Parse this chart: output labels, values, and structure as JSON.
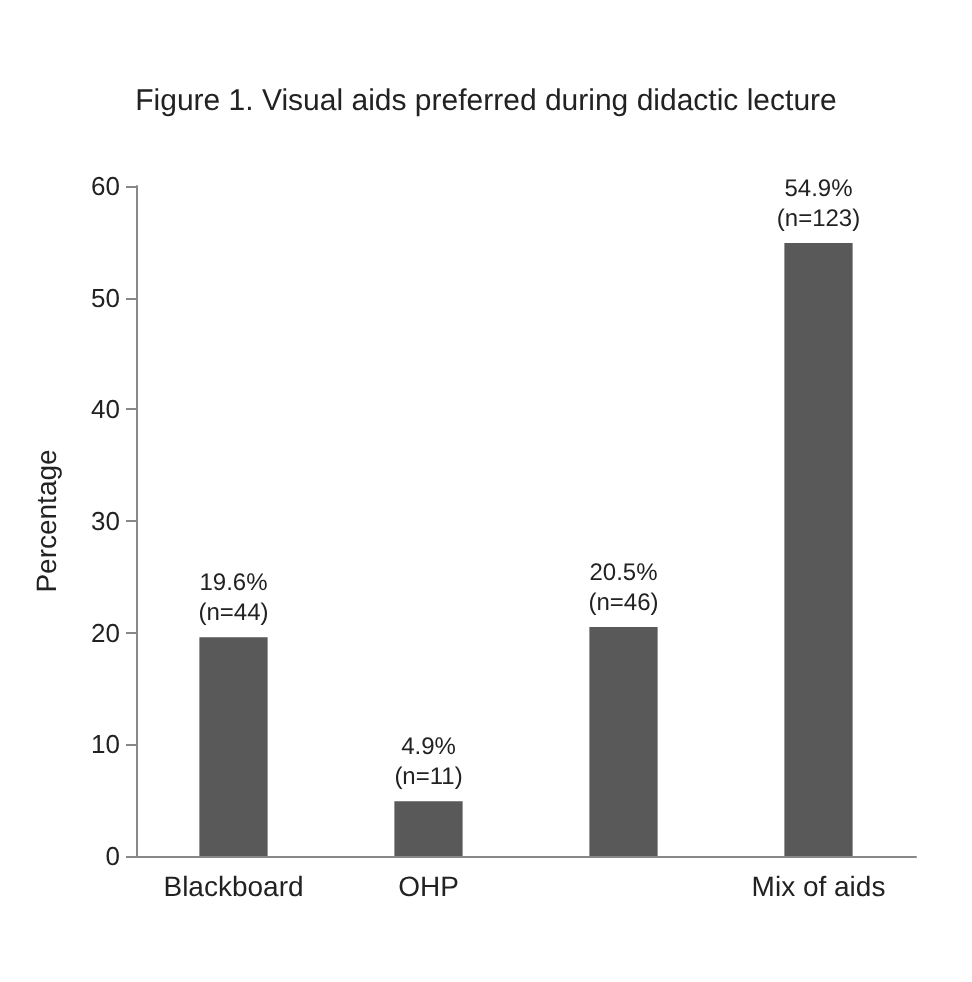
{
  "chart_data": {
    "type": "bar",
    "title": "Figure 1. Visual aids preferred during didactic lecture",
    "ylabel": "Percentage",
    "categories": [
      "Blackboard",
      "OHP",
      null,
      "Mix of aids"
    ],
    "values": [
      19.6,
      4.9,
      20.5,
      54.9
    ],
    "value_labels": [
      "19.6%\n(n=44)",
      "4.9%\n(n=11)",
      "20.5%\n(n=46)",
      "54.9%\n(n=123)"
    ],
    "color": "#595959",
    "ylim": [
      0,
      60
    ],
    "yticks": [
      0,
      10,
      20,
      30,
      40,
      50,
      60
    ]
  }
}
